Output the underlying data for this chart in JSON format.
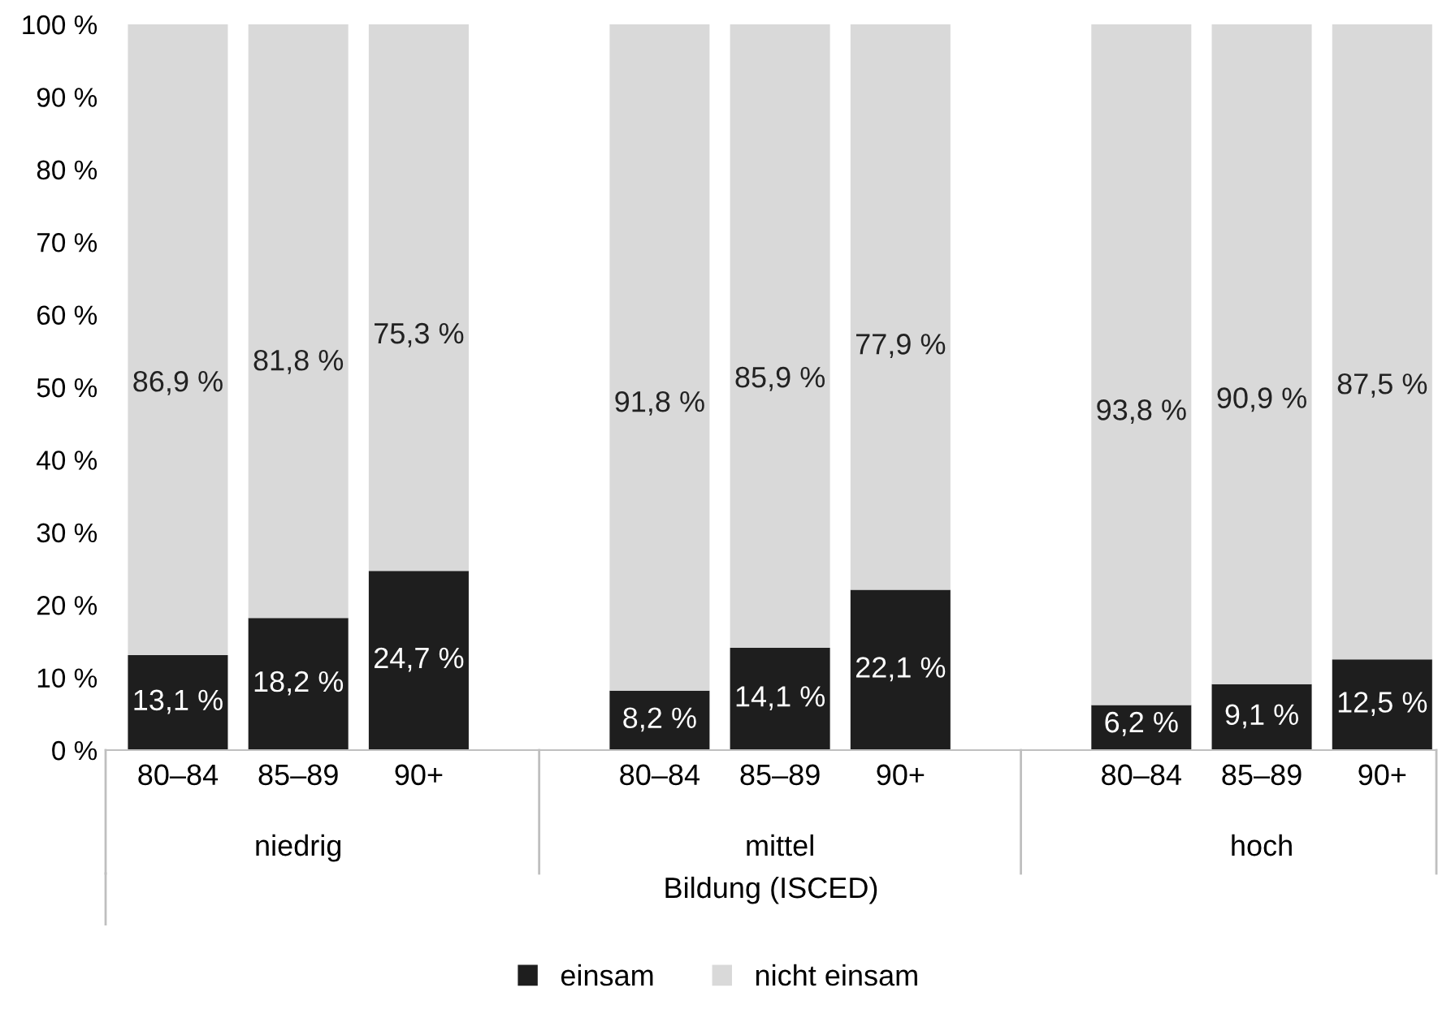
{
  "chart_data": {
    "type": "bar",
    "stacked": true,
    "xlabel": "Bildung (ISCED)",
    "categories": [
      "80–84",
      "85–89",
      "90+",
      null,
      "80–84",
      "85–89",
      "90+",
      null,
      "80–84",
      "85–89",
      "90+"
    ],
    "series": [
      {
        "name": "einsam",
        "color": "#1e1e1e",
        "values": [
          13.1,
          18.2,
          24.7,
          null,
          8.2,
          14.1,
          22.1,
          null,
          6.2,
          9.1,
          12.5
        ],
        "value_labels": [
          "13,1 %",
          "18,2 %",
          "24,7 %",
          null,
          "8,2 %",
          "14,1 %",
          "22,1 %",
          null,
          "6,2 %",
          "9,1 %",
          "12,5 %"
        ]
      },
      {
        "name": "nicht einsam",
        "color": "#d9d9d9",
        "values": [
          86.9,
          81.8,
          75.3,
          null,
          91.8,
          85.9,
          77.9,
          null,
          93.8,
          90.9,
          87.5
        ],
        "value_labels": [
          "86,9 %",
          "81,8 %",
          "75,3 %",
          null,
          "91,8 %",
          "85,9 %",
          "77,9 %",
          null,
          "93,8 %",
          "90,9 %",
          "87,5 %"
        ]
      }
    ],
    "annotations": [
      "niedrig",
      "mittel",
      "hoch"
    ],
    "ylim": [
      0,
      100
    ],
    "yticks": [
      {
        "value": 0,
        "label": "0 %"
      },
      {
        "value": 10,
        "label": "10 %"
      },
      {
        "value": 20,
        "label": "20 %"
      },
      {
        "value": 30,
        "label": "30 %"
      },
      {
        "value": 40,
        "label": "40 %"
      },
      {
        "value": 50,
        "label": "50 %"
      },
      {
        "value": 60,
        "label": "60 %"
      },
      {
        "value": 70,
        "label": "70 %"
      },
      {
        "value": 80,
        "label": "80 %"
      },
      {
        "value": 90,
        "label": "90 %"
      },
      {
        "value": 100,
        "label": "100 %"
      }
    ],
    "legend": "bottom"
  }
}
